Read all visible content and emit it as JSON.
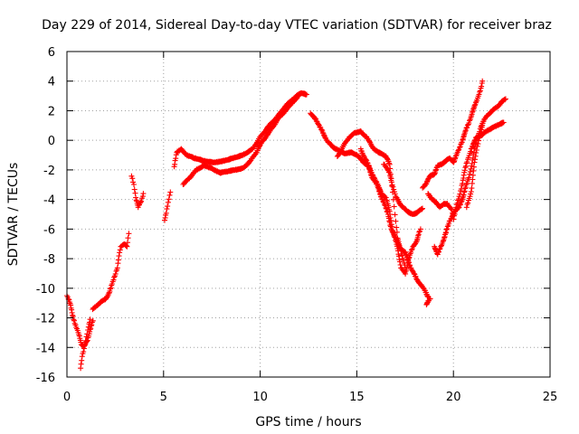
{
  "chart_data": {
    "type": "scatter",
    "title": "Day 229 of 2014, Sidereal Day-to-day VTEC variation (SDTVAR) for receiver braz",
    "xlabel": "GPS time / hours",
    "ylabel": "SDTVAR / TECUs",
    "xlim": [
      0,
      25
    ],
    "ylim": [
      -16,
      6
    ],
    "xticks": [
      "0",
      "5",
      "10",
      "15",
      "20",
      "25"
    ],
    "yticks": [
      "-16",
      "-14",
      "-12",
      "-10",
      "-8",
      "-6",
      "-4",
      "-2",
      "0",
      "2",
      "4",
      "6"
    ],
    "grid": true,
    "marker": "plus",
    "color": "#ff0000",
    "series": [
      {
        "name": "SDTVAR",
        "segments": [
          [
            [
              0.0,
              -10.5
            ],
            [
              0.15,
              -11.0
            ],
            [
              0.3,
              -11.8
            ],
            [
              0.45,
              -12.5
            ],
            [
              0.6,
              -13.1
            ],
            [
              0.75,
              -13.8
            ],
            [
              0.9,
              -13.9
            ],
            [
              1.05,
              -13.5
            ],
            [
              1.2,
              -12.8
            ],
            [
              1.35,
              -12.2
            ]
          ],
          [
            [
              0.7,
              -15.4
            ],
            [
              0.8,
              -14.6
            ],
            [
              0.9,
              -14.1
            ],
            [
              1.0,
              -13.3
            ],
            [
              1.1,
              -12.6
            ],
            [
              1.2,
              -12.1
            ]
          ],
          [
            [
              1.35,
              -11.4
            ],
            [
              1.6,
              -11.1
            ],
            [
              1.8,
              -10.9
            ],
            [
              2.0,
              -10.7
            ],
            [
              2.2,
              -10.3
            ],
            [
              2.35,
              -9.7
            ],
            [
              2.5,
              -9.0
            ],
            [
              2.6,
              -8.6
            ],
            [
              2.7,
              -7.8
            ],
            [
              2.8,
              -7.2
            ],
            [
              2.95,
              -7.0
            ],
            [
              3.1,
              -7.2
            ],
            [
              3.2,
              -6.3
            ]
          ],
          [
            [
              3.35,
              -2.4
            ],
            [
              3.45,
              -3.0
            ],
            [
              3.55,
              -3.9
            ],
            [
              3.7,
              -4.5
            ],
            [
              3.85,
              -4.1
            ],
            [
              3.95,
              -3.6
            ]
          ],
          [
            [
              5.05,
              -5.4
            ],
            [
              5.15,
              -4.9
            ],
            [
              5.25,
              -4.2
            ],
            [
              5.35,
              -3.5
            ]
          ],
          [
            [
              5.55,
              -1.8
            ],
            [
              5.7,
              -0.8
            ],
            [
              5.9,
              -0.6
            ],
            [
              6.2,
              -1.0
            ],
            [
              6.6,
              -1.2
            ],
            [
              7.1,
              -1.4
            ],
            [
              7.6,
              -1.5
            ],
            [
              8.1,
              -1.4
            ],
            [
              8.6,
              -1.2
            ],
            [
              9.1,
              -1.0
            ],
            [
              9.6,
              -0.6
            ],
            [
              10.0,
              0.2
            ],
            [
              10.4,
              0.9
            ],
            [
              10.9,
              1.6
            ],
            [
              11.3,
              2.3
            ],
            [
              11.7,
              2.8
            ],
            [
              12.1,
              3.2
            ],
            [
              12.4,
              3.1
            ]
          ],
          [
            [
              6.0,
              -3.0
            ],
            [
              6.3,
              -2.6
            ],
            [
              6.7,
              -2.0
            ],
            [
              7.1,
              -1.7
            ],
            [
              7.5,
              -1.9
            ],
            [
              7.9,
              -2.2
            ],
            [
              8.3,
              -2.1
            ],
            [
              8.7,
              -2.0
            ],
            [
              9.1,
              -1.9
            ],
            [
              9.5,
              -1.4
            ],
            [
              9.8,
              -0.8
            ],
            [
              10.1,
              -0.1
            ],
            [
              10.5,
              0.6
            ],
            [
              10.9,
              1.4
            ],
            [
              11.3,
              2.0
            ],
            [
              11.7,
              2.6
            ],
            [
              12.0,
              3.0
            ]
          ],
          [
            [
              12.6,
              1.8
            ],
            [
              12.9,
              1.4
            ],
            [
              13.2,
              0.6
            ],
            [
              13.5,
              -0.1
            ],
            [
              13.8,
              -0.5
            ],
            [
              14.1,
              -0.7
            ],
            [
              14.4,
              -0.9
            ],
            [
              14.7,
              -0.8
            ],
            [
              15.0,
              -1.0
            ],
            [
              15.3,
              -1.4
            ],
            [
              15.6,
              -1.8
            ],
            [
              15.8,
              -2.5
            ],
            [
              16.0,
              -2.9
            ],
            [
              16.2,
              -3.6
            ],
            [
              16.4,
              -4.2
            ],
            [
              16.6,
              -5.0
            ],
            [
              16.8,
              -6.0
            ],
            [
              17.0,
              -6.6
            ],
            [
              17.2,
              -7.2
            ],
            [
              17.5,
              -7.6
            ],
            [
              17.8,
              -8.6
            ],
            [
              18.1,
              -9.4
            ],
            [
              18.4,
              -9.9
            ],
            [
              18.7,
              -10.6
            ]
          ],
          [
            [
              14.0,
              -1.1
            ],
            [
              14.3,
              -0.4
            ],
            [
              14.6,
              0.2
            ],
            [
              14.9,
              0.5
            ],
            [
              15.2,
              0.6
            ],
            [
              15.5,
              0.2
            ],
            [
              15.7,
              -0.2
            ],
            [
              15.9,
              -0.6
            ],
            [
              16.1,
              -0.8
            ],
            [
              16.3,
              -0.9
            ],
            [
              16.5,
              -1.1
            ],
            [
              16.7,
              -1.6
            ],
            [
              16.8,
              -2.6
            ],
            [
              16.9,
              -4.0
            ],
            [
              17.0,
              -5.5
            ],
            [
              17.1,
              -6.6
            ],
            [
              17.3,
              -7.5
            ],
            [
              17.5,
              -8.6
            ]
          ],
          [
            [
              15.2,
              -0.6
            ],
            [
              15.5,
              -1.4
            ],
            [
              15.7,
              -2.0
            ],
            [
              15.9,
              -2.5
            ],
            [
              16.1,
              -3.1
            ],
            [
              16.3,
              -3.6
            ],
            [
              16.5,
              -3.9
            ],
            [
              16.7,
              -4.8
            ],
            [
              16.9,
              -6.3
            ],
            [
              17.1,
              -7.3
            ],
            [
              17.3,
              -8.6
            ],
            [
              17.5,
              -9.0
            ],
            [
              17.7,
              -8.0
            ],
            [
              17.9,
              -7.2
            ],
            [
              18.1,
              -6.8
            ],
            [
              18.3,
              -6.0
            ]
          ],
          [
            [
              16.4,
              -1.6
            ],
            [
              16.7,
              -2.2
            ],
            [
              17.0,
              -3.8
            ],
            [
              17.3,
              -4.4
            ],
            [
              17.6,
              -4.8
            ],
            [
              17.9,
              -5.0
            ],
            [
              18.1,
              -4.9
            ],
            [
              18.4,
              -4.6
            ]
          ],
          [
            [
              18.6,
              -11.1
            ],
            [
              18.8,
              -10.7
            ]
          ],
          [
            [
              18.4,
              -3.2
            ],
            [
              18.6,
              -2.9
            ],
            [
              18.8,
              -2.4
            ],
            [
              19.0,
              -2.3
            ],
            [
              19.2,
              -1.7
            ],
            [
              19.4,
              -1.6
            ],
            [
              19.6,
              -1.4
            ],
            [
              19.8,
              -1.2
            ],
            [
              20.0,
              -1.5
            ],
            [
              20.2,
              -0.9
            ],
            [
              20.4,
              -0.2
            ],
            [
              20.6,
              0.5
            ],
            [
              20.8,
              1.2
            ],
            [
              21.0,
              2.0
            ],
            [
              21.2,
              2.6
            ],
            [
              21.4,
              3.5
            ],
            [
              21.5,
              4.0
            ]
          ],
          [
            [
              18.7,
              -3.6
            ],
            [
              18.9,
              -4.0
            ],
            [
              19.1,
              -4.2
            ],
            [
              19.3,
              -4.5
            ],
            [
              19.5,
              -4.3
            ],
            [
              19.7,
              -4.3
            ],
            [
              19.9,
              -4.7
            ],
            [
              20.0,
              -5.3
            ],
            [
              20.1,
              -4.8
            ],
            [
              20.3,
              -3.8
            ],
            [
              20.6,
              -2.0
            ],
            [
              20.9,
              -0.6
            ],
            [
              21.2,
              0.2
            ],
            [
              21.5,
              0.4
            ],
            [
              21.8,
              0.7
            ],
            [
              22.1,
              0.9
            ],
            [
              22.4,
              1.1
            ],
            [
              22.6,
              1.2
            ]
          ],
          [
            [
              19.0,
              -7.2
            ],
            [
              19.2,
              -7.7
            ],
            [
              19.4,
              -7.0
            ],
            [
              19.6,
              -6.3
            ],
            [
              19.8,
              -5.5
            ],
            [
              20.0,
              -4.9
            ],
            [
              20.3,
              -4.5
            ],
            [
              20.5,
              -3.8
            ],
            [
              20.8,
              -2.5
            ],
            [
              21.1,
              -0.6
            ],
            [
              21.4,
              0.9
            ],
            [
              21.7,
              1.6
            ],
            [
              22.0,
              2.0
            ],
            [
              22.3,
              2.3
            ],
            [
              22.5,
              2.6
            ],
            [
              22.7,
              2.8
            ]
          ],
          [
            [
              20.7,
              -4.5
            ],
            [
              20.9,
              -3.5
            ],
            [
              21.1,
              -1.5
            ],
            [
              21.3,
              0.0
            ],
            [
              21.5,
              1.0
            ]
          ]
        ]
      }
    ]
  }
}
